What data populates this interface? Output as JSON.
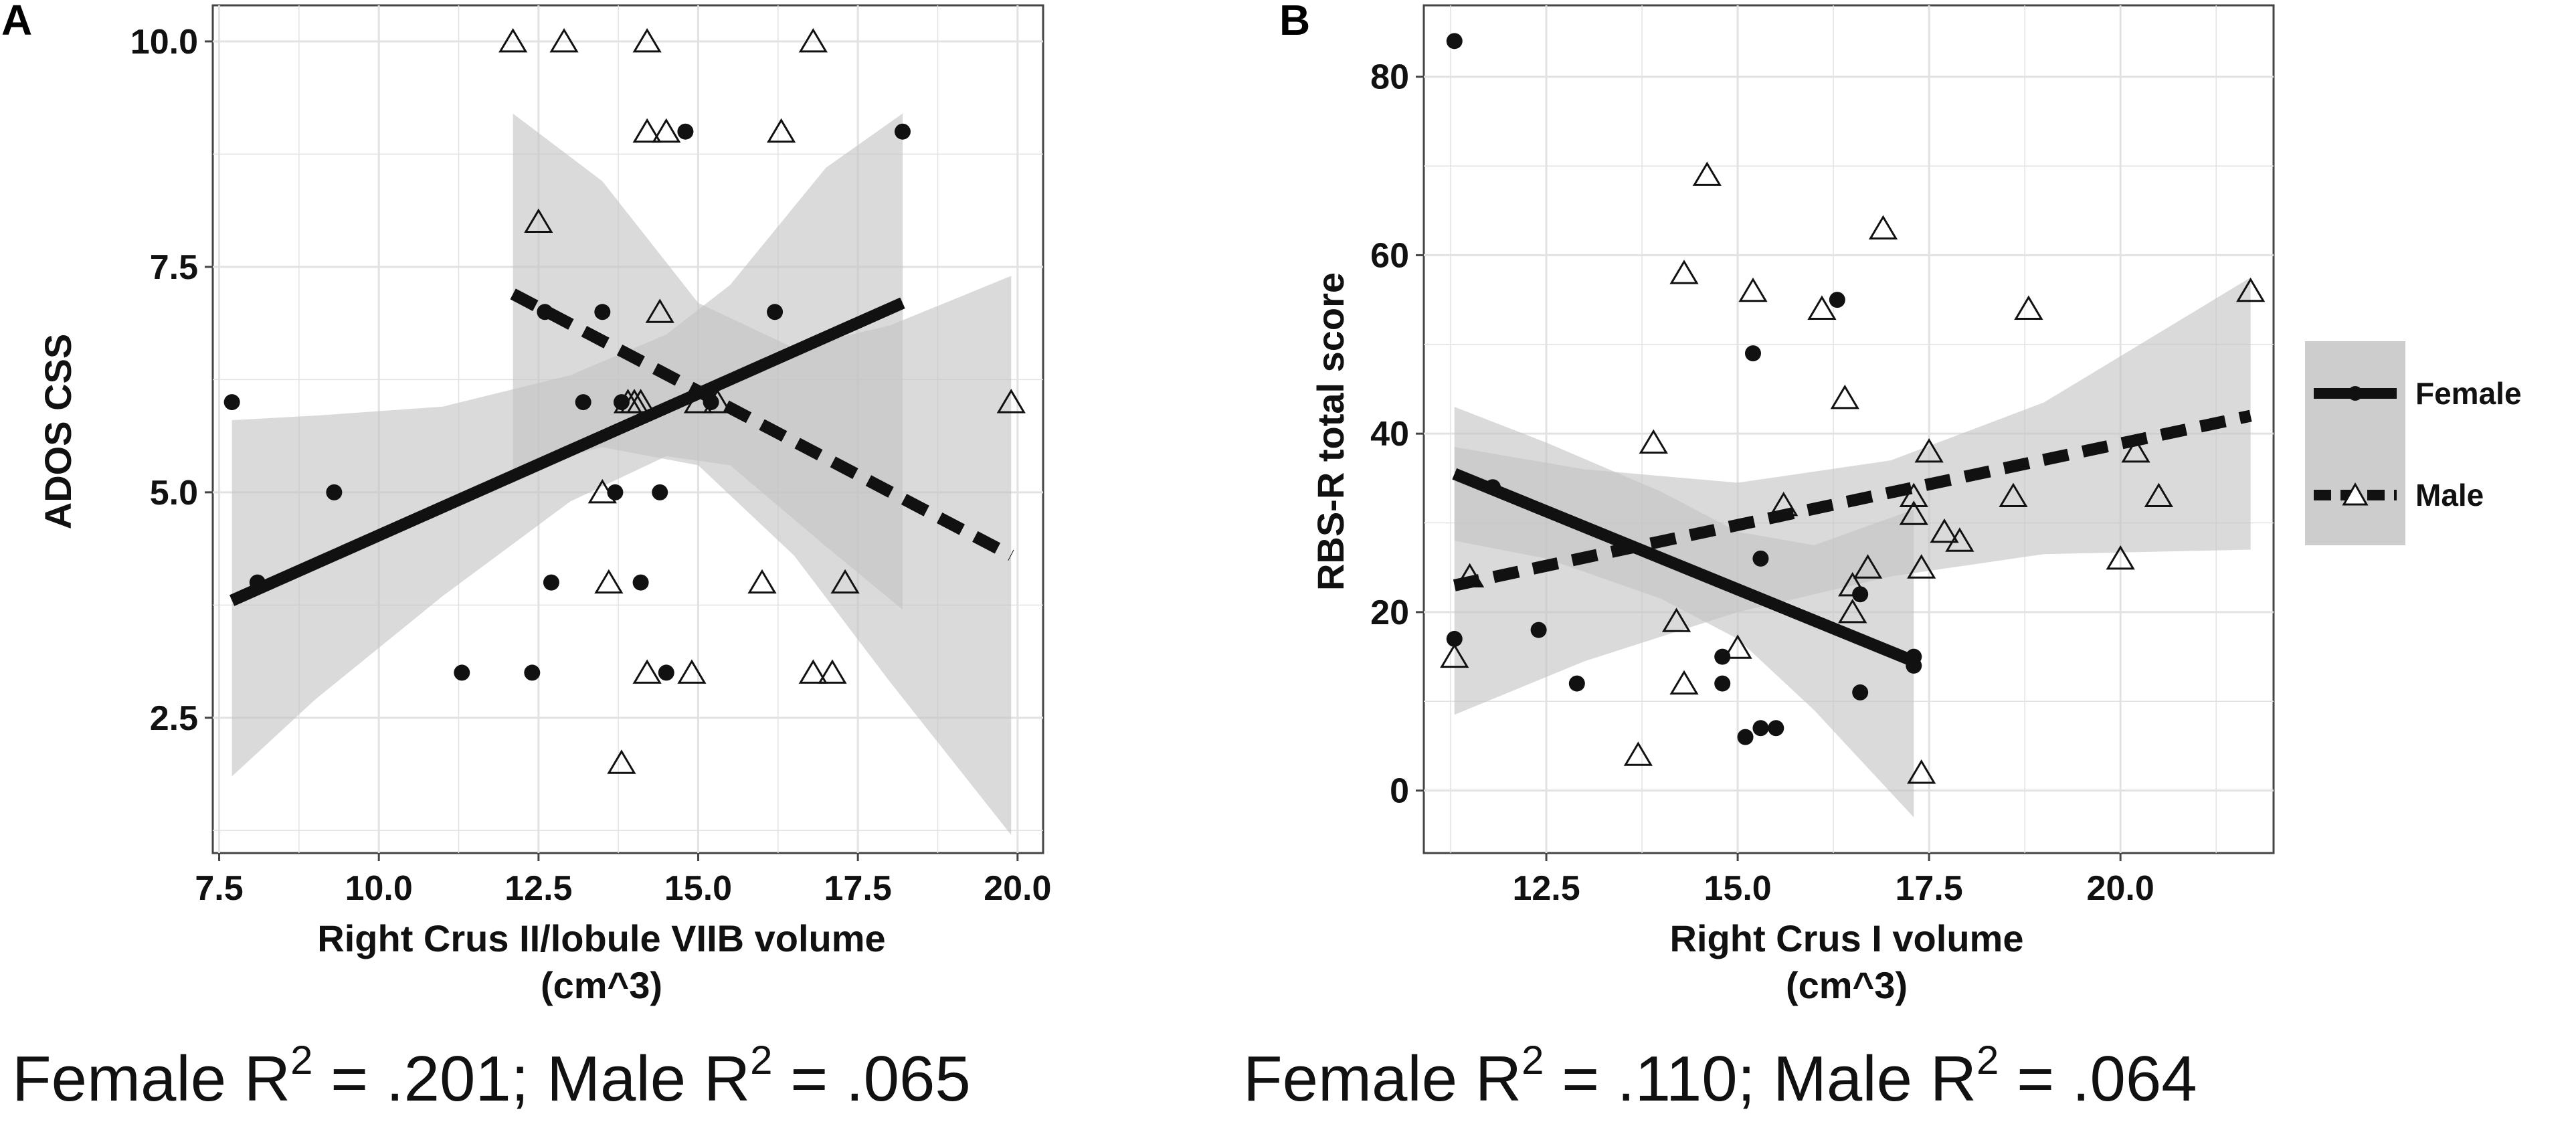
{
  "legend": {
    "items": [
      {
        "label": "Female",
        "line": "solid",
        "marker": "circle"
      },
      {
        "label": "Male",
        "line": "dashed",
        "marker": "triangle"
      }
    ]
  },
  "colors": {
    "band": "#c4c4c4",
    "female_line": "#111111",
    "male_line": "#111111",
    "grid": "#e2e2e2",
    "legend_bg": "#cdcdcd"
  },
  "chart_data": [
    {
      "panel": "A",
      "type": "scatter",
      "xlabel_line1": "Right Crus II/lobule VIIB volume",
      "xlabel_line2": "(cm^3)",
      "ylabel": "ADOS CSS",
      "xlim": [
        7.4,
        20.4
      ],
      "ylim": [
        1.0,
        10.4
      ],
      "xticks": [
        7.5,
        10.0,
        12.5,
        15.0,
        17.5,
        20.0
      ],
      "yticks": [
        2.5,
        5.0,
        7.5,
        10.0
      ],
      "x_tick_labels": [
        "7.5",
        "10.0",
        "12.5",
        "15.0",
        "17.5",
        "20.0"
      ],
      "y_tick_labels": [
        "2.5",
        "5.0",
        "7.5",
        "10.0"
      ],
      "r2_caption": {
        "female_text": "Female R",
        "female_value": " = .201; Male R",
        "male_value": " = .065",
        "sup": "2"
      },
      "series": [
        {
          "name": "Female",
          "marker": "circle",
          "points": [
            [
              7.7,
              6
            ],
            [
              8.1,
              4
            ],
            [
              9.3,
              5
            ],
            [
              11.3,
              3
            ],
            [
              12.4,
              3
            ],
            [
              12.6,
              7
            ],
            [
              12.7,
              4
            ],
            [
              13.2,
              6
            ],
            [
              13.5,
              7
            ],
            [
              13.7,
              5
            ],
            [
              13.8,
              6
            ],
            [
              14.1,
              4
            ],
            [
              14.4,
              5
            ],
            [
              14.5,
              3
            ],
            [
              14.8,
              9
            ],
            [
              15.2,
              6
            ],
            [
              16.2,
              7
            ],
            [
              18.2,
              9
            ]
          ],
          "fit": {
            "x": [
              7.7,
              18.2
            ],
            "y": [
              3.8,
              7.1
            ]
          },
          "band": {
            "x": [
              7.7,
              9.0,
              11.0,
              13.0,
              14.5,
              15.5,
              17.0,
              18.2
            ],
            "lower": [
              1.85,
              2.7,
              3.85,
              4.9,
              5.4,
              5.3,
              4.4,
              3.7
            ],
            "upper": [
              5.8,
              5.85,
              5.95,
              6.3,
              6.75,
              7.3,
              8.6,
              9.2
            ]
          }
        },
        {
          "name": "Male",
          "marker": "triangle",
          "points": [
            [
              12.1,
              10
            ],
            [
              12.9,
              10
            ],
            [
              14.2,
              10
            ],
            [
              16.8,
              10
            ],
            [
              14.2,
              9
            ],
            [
              14.5,
              9
            ],
            [
              16.3,
              9
            ],
            [
              12.5,
              8
            ],
            [
              14.4,
              7
            ],
            [
              13.9,
              6
            ],
            [
              14.0,
              6
            ],
            [
              14.1,
              6
            ],
            [
              15.0,
              6
            ],
            [
              15.3,
              6
            ],
            [
              19.9,
              6
            ],
            [
              13.5,
              5
            ],
            [
              13.6,
              4
            ],
            [
              16.0,
              4
            ],
            [
              17.3,
              4
            ],
            [
              14.2,
              3
            ],
            [
              14.9,
              3
            ],
            [
              16.8,
              3
            ],
            [
              17.1,
              3
            ],
            [
              13.8,
              2
            ]
          ],
          "fit": {
            "x": [
              12.1,
              19.9
            ],
            "y": [
              7.2,
              4.3
            ]
          },
          "band": {
            "x": [
              12.1,
              13.5,
              15.0,
              16.5,
              18.0,
              19.9
            ],
            "lower": [
              5.25,
              5.5,
              5.3,
              4.3,
              2.9,
              1.2
            ],
            "upper": [
              9.2,
              8.45,
              7.1,
              6.6,
              6.85,
              7.4
            ]
          }
        }
      ]
    },
    {
      "panel": "B",
      "type": "scatter",
      "xlabel_line1": "Right Crus I volume",
      "xlabel_line2": "(cm^3)",
      "ylabel": "RBS-R total score",
      "xlim": [
        10.9,
        22.0
      ],
      "ylim": [
        -7,
        88
      ],
      "xticks": [
        12.5,
        15.0,
        17.5,
        20.0
      ],
      "yticks": [
        0,
        20,
        40,
        60,
        80
      ],
      "x_tick_labels": [
        "12.5",
        "15.0",
        "17.5",
        "20.0"
      ],
      "y_tick_labels": [
        "0",
        "20",
        "40",
        "60",
        "80"
      ],
      "r2_caption": {
        "female_text": "Female R",
        "female_value": " = .110; Male R",
        "male_value": " = .064",
        "sup": "2"
      },
      "series": [
        {
          "name": "Female",
          "marker": "circle",
          "points": [
            [
              11.3,
              84
            ],
            [
              11.3,
              17
            ],
            [
              11.8,
              34
            ],
            [
              12.4,
              18
            ],
            [
              12.9,
              12
            ],
            [
              14.8,
              12
            ],
            [
              14.8,
              15
            ],
            [
              15.1,
              6
            ],
            [
              15.3,
              7
            ],
            [
              15.5,
              7
            ],
            [
              15.2,
              49
            ],
            [
              15.3,
              26
            ],
            [
              16.3,
              55
            ],
            [
              16.6,
              22
            ],
            [
              16.6,
              11
            ],
            [
              17.3,
              15
            ],
            [
              17.3,
              14
            ]
          ],
          "fit": {
            "x": [
              11.3,
              17.3
            ],
            "y": [
              35.5,
              14.5
            ]
          },
          "band": {
            "x": [
              11.3,
              12.5,
              14.0,
              15.0,
              16.0,
              17.3
            ],
            "lower": [
              28.0,
              26.0,
              21.5,
              17.0,
              9.0,
              -3.0
            ],
            "upper": [
              43.0,
              39.0,
              33.5,
              29.0,
              27.5,
              31.5
            ]
          }
        },
        {
          "name": "Male",
          "marker": "triangle",
          "points": [
            [
              11.3,
              15
            ],
            [
              11.5,
              24
            ],
            [
              13.7,
              4
            ],
            [
              13.9,
              39
            ],
            [
              14.2,
              19
            ],
            [
              14.3,
              12
            ],
            [
              14.3,
              58
            ],
            [
              14.6,
              69
            ],
            [
              15.0,
              16
            ],
            [
              15.2,
              56
            ],
            [
              15.6,
              32
            ],
            [
              16.1,
              54
            ],
            [
              16.4,
              44
            ],
            [
              16.5,
              23
            ],
            [
              16.5,
              20
            ],
            [
              16.7,
              25
            ],
            [
              16.9,
              63
            ],
            [
              17.3,
              33
            ],
            [
              17.3,
              31
            ],
            [
              17.4,
              25
            ],
            [
              17.5,
              38
            ],
            [
              17.4,
              2
            ],
            [
              17.7,
              29
            ],
            [
              17.9,
              28
            ],
            [
              18.6,
              33
            ],
            [
              18.8,
              54
            ],
            [
              20.0,
              26
            ],
            [
              20.2,
              38
            ],
            [
              20.5,
              33
            ],
            [
              21.7,
              56
            ]
          ],
          "fit": {
            "x": [
              11.3,
              21.7
            ],
            "y": [
              23.0,
              42.0
            ]
          },
          "band": {
            "x": [
              11.3,
              13.0,
              15.0,
              17.0,
              19.0,
              21.7
            ],
            "lower": [
              8.5,
              14.5,
              20.0,
              24.0,
              26.5,
              27.0
            ],
            "upper": [
              38.5,
              36.0,
              34.5,
              37.0,
              43.5,
              57.5
            ]
          }
        }
      ]
    }
  ]
}
